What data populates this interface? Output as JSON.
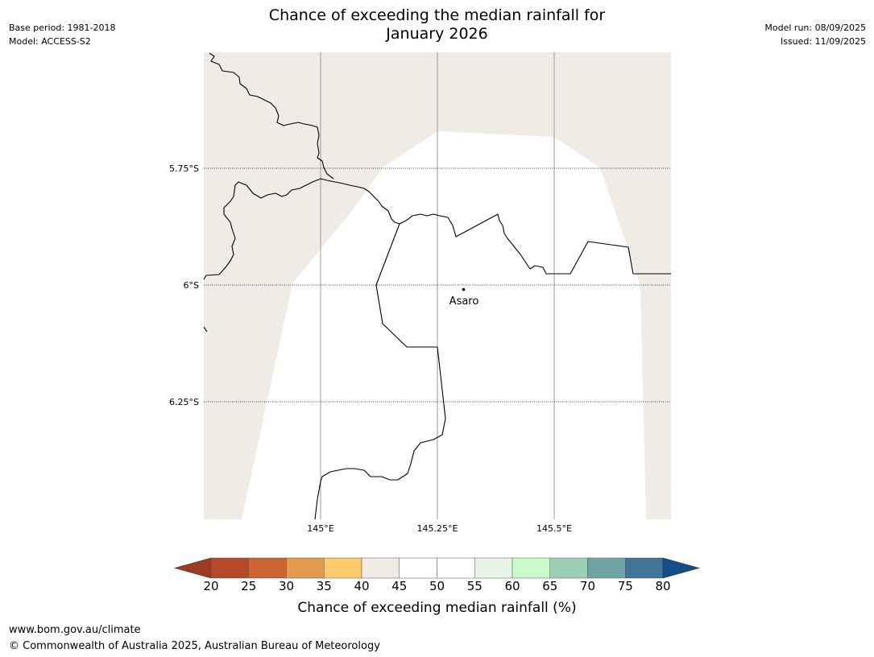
{
  "title_line1": "Chance of exceeding the median rainfall for",
  "title_line2": "January 2026",
  "base_period": "Base period: 1981-2018",
  "model": "Model: ACCESS-S2",
  "model_run": "Model run: 08/09/2025",
  "issued": "Issued: 11/09/2025",
  "map": {
    "lat_labels": [
      "5.75°S",
      "6°S",
      "6.25°S"
    ],
    "lon_labels": [
      "145°E",
      "145.25°E",
      "145.5°E"
    ],
    "place_label": "Asaro",
    "colors": {
      "band_40_45": "#f0ebe5",
      "band_45_55": "#ffffff",
      "border": "#000000"
    }
  },
  "colorbar": {
    "ticks": [
      "20",
      "25",
      "30",
      "35",
      "40",
      "45",
      "50",
      "55",
      "60",
      "65",
      "70",
      "75",
      "80"
    ],
    "colors": [
      "#9a3b22",
      "#b5492a",
      "#cd6532",
      "#e39a4c",
      "#fecb6a",
      "#f0ebe5",
      "#ffffff",
      "#ffffff",
      "#e8f5e6",
      "#c8fbc8",
      "#9dcfb7",
      "#6fa3a5",
      "#3f7598",
      "#154e86"
    ],
    "label": "Chance of exceeding median rainfall (%)"
  },
  "footer": {
    "url": "www.bom.gov.au/climate",
    "copyright": "© Commonwealth of Australia 2025, Australian Bureau of Meteorology"
  }
}
